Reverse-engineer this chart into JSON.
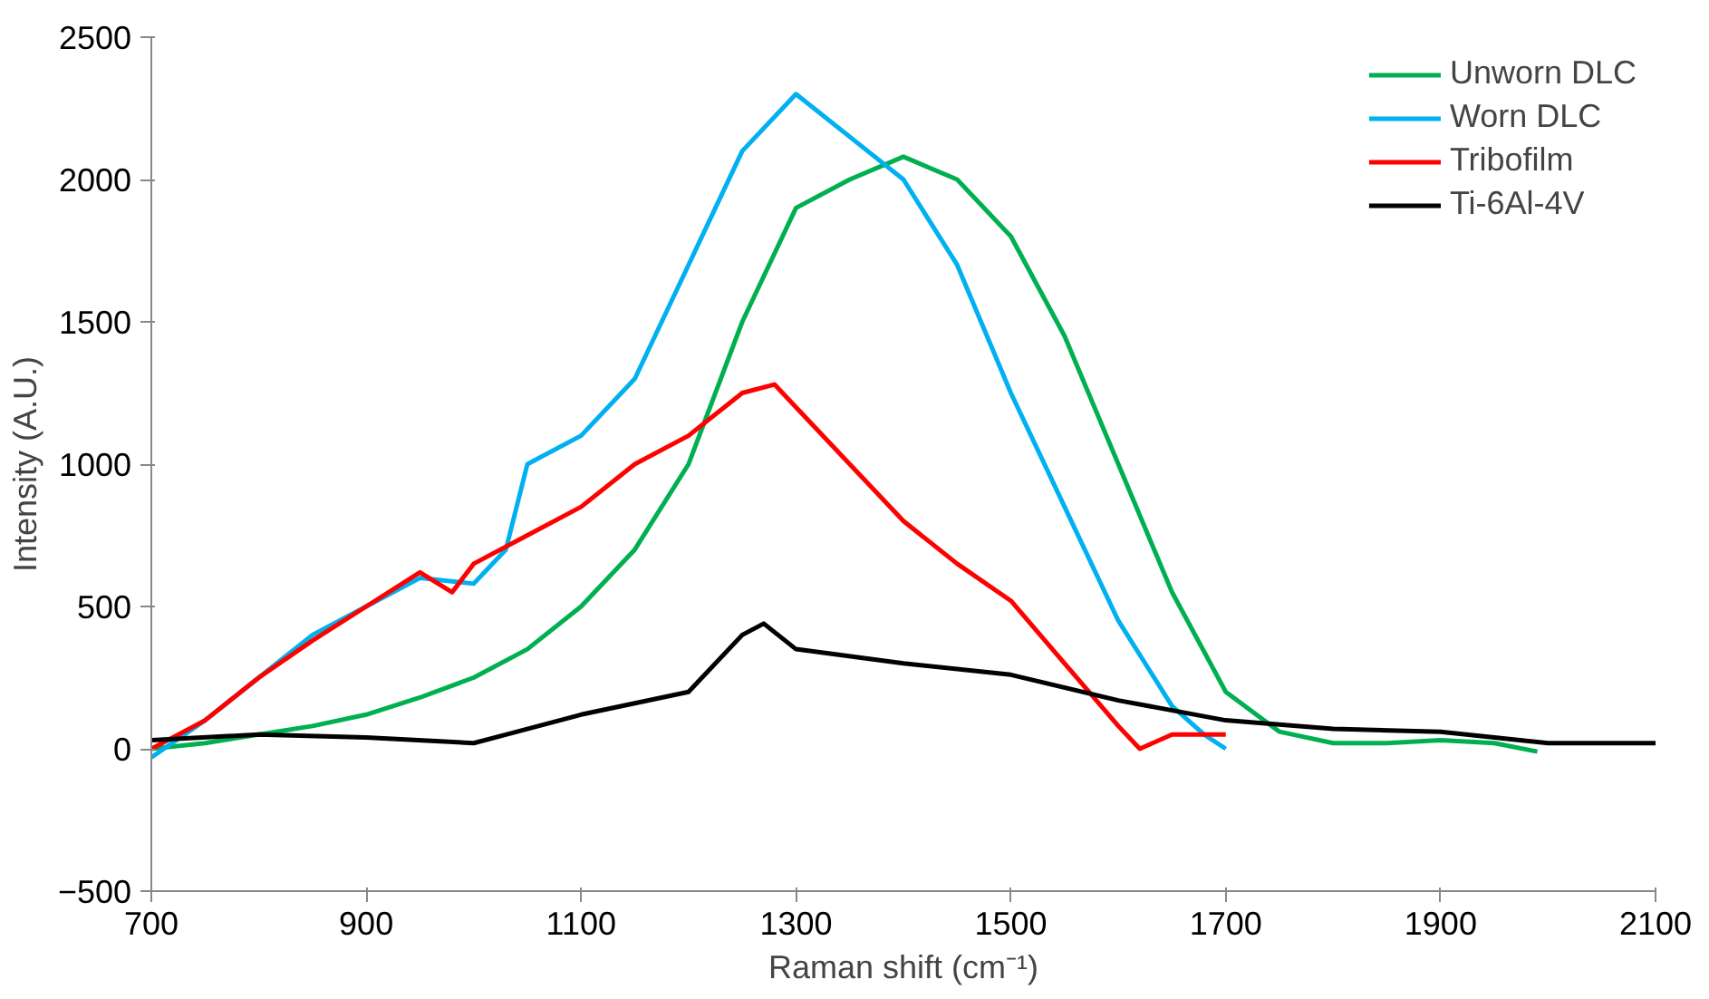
{
  "chart_data": {
    "type": "line",
    "xlabel": "Raman shift (cm⁻¹)",
    "ylabel": "Intensity (A.U.)",
    "xlim": [
      700,
      2100
    ],
    "xticks": [
      700,
      900,
      1100,
      1300,
      1500,
      1700,
      1900,
      2100
    ],
    "ylim": [
      -500,
      2500
    ],
    "yticks": [
      -500,
      0,
      500,
      1000,
      1500,
      2000,
      2500
    ],
    "grid": false,
    "legend": "top right",
    "marker": "none",
    "line_style": "solid",
    "series": [
      {
        "name": "Unworn DLC",
        "color": "#00b050",
        "x": [
          700,
          750,
          800,
          850,
          900,
          950,
          1000,
          1050,
          1100,
          1150,
          1200,
          1250,
          1300,
          1350,
          1400,
          1450,
          1500,
          1550,
          1600,
          1650,
          1700,
          1750,
          1800,
          1850,
          1900,
          1950,
          1990
        ],
        "values": [
          0,
          20,
          50,
          80,
          120,
          180,
          250,
          350,
          500,
          700,
          1000,
          1500,
          1900,
          2000,
          2080,
          2000,
          1800,
          1450,
          1000,
          550,
          200,
          60,
          20,
          20,
          30,
          20,
          -10
        ]
      },
      {
        "name": "Worn DLC",
        "color": "#00b0f0",
        "x": [
          700,
          750,
          800,
          850,
          900,
          950,
          1000,
          1030,
          1050,
          1100,
          1150,
          1200,
          1250,
          1300,
          1350,
          1400,
          1450,
          1500,
          1550,
          1600,
          1650,
          1680,
          1700
        ],
        "values": [
          -30,
          100,
          250,
          400,
          500,
          600,
          580,
          700,
          1000,
          1100,
          1300,
          1700,
          2100,
          2300,
          2150,
          2000,
          1700,
          1250,
          850,
          450,
          150,
          50,
          0
        ]
      },
      {
        "name": "Tribofilm",
        "color": "#ff0000",
        "x": [
          700,
          750,
          800,
          850,
          900,
          950,
          980,
          1000,
          1050,
          1100,
          1150,
          1200,
          1250,
          1280,
          1300,
          1350,
          1400,
          1450,
          1500,
          1550,
          1600,
          1620,
          1650,
          1700
        ],
        "values": [
          0,
          100,
          250,
          380,
          500,
          620,
          550,
          650,
          750,
          850,
          1000,
          1100,
          1250,
          1280,
          1200,
          1000,
          800,
          650,
          520,
          300,
          80,
          0,
          50,
          50
        ]
      },
      {
        "name": "Ti-6Al-4V",
        "color": "#000000",
        "x": [
          700,
          800,
          900,
          1000,
          1030,
          1100,
          1150,
          1200,
          1250,
          1270,
          1300,
          1400,
          1500,
          1600,
          1700,
          1800,
          1900,
          2000,
          2100
        ],
        "values": [
          30,
          50,
          40,
          20,
          50,
          120,
          160,
          200,
          400,
          440,
          350,
          300,
          260,
          170,
          100,
          70,
          60,
          20,
          20
        ]
      }
    ]
  }
}
